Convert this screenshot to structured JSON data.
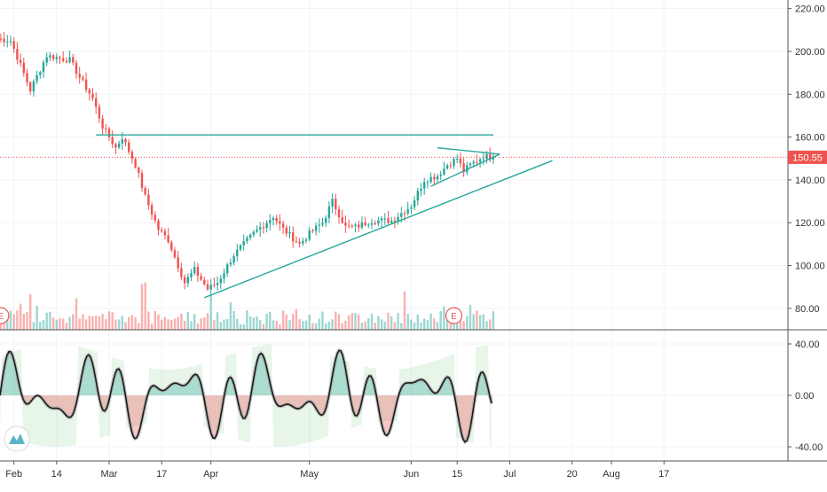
{
  "chart_data": [
    {
      "type": "candlestick",
      "title": "",
      "ylim": [
        70,
        224
      ],
      "y_ticks": [
        "220.00",
        "200.00",
        "180.00",
        "160.00",
        "140.00",
        "120.00",
        "100.00",
        "80.00"
      ],
      "y_tick_values": [
        220,
        200,
        180,
        160,
        140,
        120,
        100,
        80
      ],
      "last_price": "150.55",
      "last_price_value": 150.55,
      "up_color": "#26a69a",
      "down_color": "#ef5350",
      "last_price_color": "#ef5350",
      "x_ticks": [
        "Feb",
        "14",
        "Mar",
        "17",
        "Apr",
        "May",
        "Jun",
        "15",
        "Jul",
        "20",
        "Aug",
        "17"
      ],
      "earnings_marker": "E",
      "earnings_positions": [
        "late Jan",
        "mid Jun"
      ],
      "anchors": [
        [
          "2020-01-27",
          206
        ],
        [
          "2020-01-31",
          205
        ],
        [
          "2020-02-06",
          182
        ],
        [
          "2020-02-11",
          198
        ],
        [
          "2020-02-18",
          196
        ],
        [
          "2020-02-21",
          188
        ],
        [
          "2020-02-25",
          178
        ],
        [
          "2020-02-28",
          165
        ],
        [
          "2020-03-03",
          155
        ],
        [
          "2020-03-05",
          160
        ],
        [
          "2020-03-09",
          147
        ],
        [
          "2020-03-12",
          132
        ],
        [
          "2020-03-16",
          117
        ],
        [
          "2020-03-19",
          112
        ],
        [
          "2020-03-24",
          92
        ],
        [
          "2020-03-27",
          98
        ],
        [
          "2020-03-31",
          89
        ],
        [
          "2020-04-03",
          92
        ],
        [
          "2020-04-08",
          105
        ],
        [
          "2020-04-14",
          115
        ],
        [
          "2020-04-20",
          123
        ],
        [
          "2020-04-23",
          117
        ],
        [
          "2020-04-28",
          110
        ],
        [
          "2020-05-01",
          115
        ],
        [
          "2020-05-05",
          120
        ],
        [
          "2020-05-08",
          130
        ],
        [
          "2020-05-12",
          118
        ],
        [
          "2020-05-15",
          118
        ],
        [
          "2020-05-20",
          121
        ],
        [
          "2020-05-26",
          121
        ],
        [
          "2020-06-01",
          128
        ],
        [
          "2020-06-05",
          140
        ],
        [
          "2020-06-09",
          142
        ],
        [
          "2020-06-12",
          147
        ],
        [
          "2020-06-15",
          150
        ],
        [
          "2020-06-17",
          144
        ],
        [
          "2020-06-19",
          147
        ],
        [
          "2020-06-23",
          151
        ],
        [
          "2020-06-26",
          150.55
        ]
      ],
      "trendlines": [
        {
          "name": "resistance",
          "from": [
            "2020-02-26",
            161
          ],
          "to": [
            "2020-06-26",
            161
          ]
        },
        {
          "name": "support",
          "from": [
            "2020-03-30",
            85
          ],
          "to": [
            "2020-07-14",
            149
          ]
        },
        {
          "name": "triangle-upper",
          "from": [
            "2020-06-09",
            155
          ],
          "to": [
            "2020-06-28",
            152
          ]
        },
        {
          "name": "triangle-lower",
          "from": [
            "2020-06-07",
            137
          ],
          "to": [
            "2020-06-28",
            152
          ]
        }
      ],
      "trendline_color": "#26a69a",
      "has_volume": true
    },
    {
      "type": "oscillator",
      "title": "",
      "ylim": [
        -51,
        51
      ],
      "y_ticks": [
        "40.00",
        "0.00",
        "-40.00"
      ],
      "y_tick_values": [
        40,
        0,
        -40
      ],
      "fill_positive_color": "#26a69a",
      "fill_negative_color": "#ef5350",
      "line_color": "#1b1b1b"
    }
  ]
}
